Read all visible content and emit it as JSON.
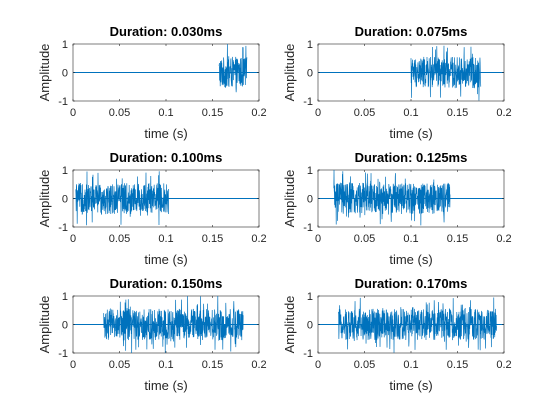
{
  "chart_data": [
    {
      "type": "line",
      "title": "Duration: 0.030ms",
      "xlabel": "time (s)",
      "ylabel": "Amplitude",
      "xlim": [
        0,
        0.2
      ],
      "ylim": [
        -1,
        1
      ],
      "xticks": [
        "0",
        "0.05",
        "0.1",
        "0.15",
        "0.2"
      ],
      "yticks": [
        "1",
        "0",
        "-1"
      ],
      "grid": false,
      "series": [
        {
          "burst_start": 0.157,
          "burst_end": 0.187,
          "amplitude": 1.0,
          "baseline": 0,
          "signal_end": 0.2
        }
      ]
    },
    {
      "type": "line",
      "title": "Duration: 0.075ms",
      "xlabel": "time (s)",
      "ylabel": "Amplitude",
      "xlim": [
        0,
        0.2
      ],
      "ylim": [
        -1,
        1
      ],
      "xticks": [
        "0",
        "0.05",
        "0.1",
        "0.15",
        "0.2"
      ],
      "yticks": [
        "1",
        "0",
        "-1"
      ],
      "grid": false,
      "series": [
        {
          "burst_start": 0.1,
          "burst_end": 0.175,
          "amplitude": 1.0,
          "baseline": 0,
          "signal_end": 0.2
        }
      ]
    },
    {
      "type": "line",
      "title": "Duration: 0.100ms",
      "xlabel": "time (s)",
      "ylabel": "Amplitude",
      "xlim": [
        0,
        0.2
      ],
      "ylim": [
        -1,
        1
      ],
      "xticks": [
        "0",
        "0.05",
        "0.1",
        "0.15",
        "0.2"
      ],
      "yticks": [
        "1",
        "0",
        "-1"
      ],
      "grid": false,
      "series": [
        {
          "burst_start": 0.003,
          "burst_end": 0.103,
          "amplitude": 1.0,
          "baseline": 0,
          "signal_end": 0.2
        }
      ]
    },
    {
      "type": "line",
      "title": "Duration: 0.125ms",
      "xlabel": "time (s)",
      "ylabel": "Amplitude",
      "xlim": [
        0,
        0.2
      ],
      "ylim": [
        -1,
        1
      ],
      "xticks": [
        "0",
        "0.05",
        "0.1",
        "0.15",
        "0.2"
      ],
      "yticks": [
        "1",
        "0",
        "-1"
      ],
      "grid": false,
      "series": [
        {
          "burst_start": 0.017,
          "burst_end": 0.142,
          "amplitude": 1.0,
          "baseline": 0,
          "signal_end": 0.2
        }
      ]
    },
    {
      "type": "line",
      "title": "Duration: 0.150ms",
      "xlabel": "time (s)",
      "ylabel": "Amplitude",
      "xlim": [
        0,
        0.2
      ],
      "ylim": [
        -1,
        1
      ],
      "xticks": [
        "0",
        "0.05",
        "0.1",
        "0.15",
        "0.2"
      ],
      "yticks": [
        "1",
        "0",
        "-1"
      ],
      "grid": false,
      "series": [
        {
          "burst_start": 0.033,
          "burst_end": 0.183,
          "amplitude": 1.0,
          "baseline": 0,
          "signal_end": 0.2
        }
      ]
    },
    {
      "type": "line",
      "title": "Duration: 0.170ms",
      "xlabel": "time (s)",
      "ylabel": "Amplitude",
      "xlim": [
        0,
        0.2
      ],
      "ylim": [
        -1,
        1
      ],
      "xticks": [
        "0",
        "0.05",
        "0.1",
        "0.15",
        "0.2"
      ],
      "yticks": [
        "1",
        "0",
        "-1"
      ],
      "grid": false,
      "series": [
        {
          "burst_start": 0.022,
          "burst_end": 0.192,
          "amplitude": 1.0,
          "baseline": 0,
          "signal_end": 0.2
        }
      ]
    }
  ],
  "colors": {
    "signal": "#0072bd",
    "axes": "#262626",
    "background": "#ffffff"
  }
}
